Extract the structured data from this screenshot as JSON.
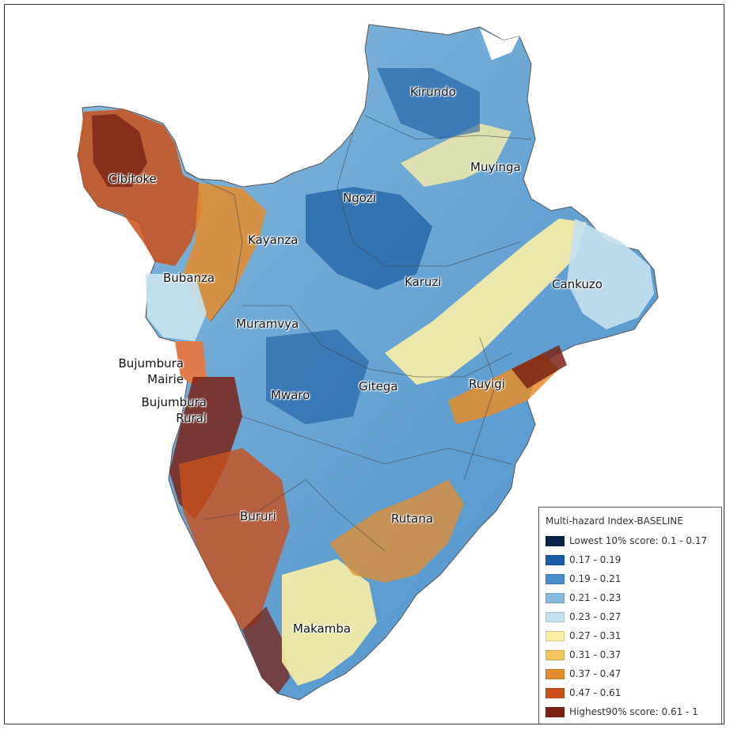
{
  "map": {
    "regions": [
      {
        "name": "Kirundo",
        "class": 2
      },
      {
        "name": "Muyinga",
        "class": 1
      },
      {
        "name": "Ngozi",
        "class": 1
      },
      {
        "name": "Cibitoke",
        "class": 8
      },
      {
        "name": "Kayanza",
        "class": 6
      },
      {
        "name": "Bubanza",
        "class": 7
      },
      {
        "name": "Karuzi",
        "class": 2
      },
      {
        "name": "Cankuzo",
        "class": 5
      },
      {
        "name": "Muramvya",
        "class": 3
      },
      {
        "name": "Bujumbura Mairie",
        "class": 8
      },
      {
        "name": "Bujumbura Rural",
        "class": 9
      },
      {
        "name": "Mwaro",
        "class": 2
      },
      {
        "name": "Gitega",
        "class": 3
      },
      {
        "name": "Ruyigi",
        "class": 6
      },
      {
        "name": "Bururi",
        "class": 8
      },
      {
        "name": "Rutana",
        "class": 6
      },
      {
        "name": "Makamba",
        "class": 5
      }
    ]
  },
  "legend": {
    "title": "Multi-hazard Index-BASELINE",
    "items": [
      {
        "label": "Lowest 10% score: 0.1 - 0.17",
        "color": "#08234a"
      },
      {
        "label": "0.17 - 0.19",
        "color": "#1a5ca3"
      },
      {
        "label": "0.19 - 0.21",
        "color": "#4a8fcb"
      },
      {
        "label": "0.21 - 0.23",
        "color": "#86b9dc"
      },
      {
        "label": "0.23 - 0.27",
        "color": "#c5e0ee"
      },
      {
        "label": "0.27 - 0.31",
        "color": "#fbeea5"
      },
      {
        "label": "0.31 - 0.37",
        "color": "#f2c65c"
      },
      {
        "label": "0.37 - 0.47",
        "color": "#e58c2c"
      },
      {
        "label": "0.47 - 0.61",
        "color": "#c9501b"
      },
      {
        "label": "Highest90% score:  0.61 - 1",
        "color": "#7a2315"
      }
    ]
  }
}
